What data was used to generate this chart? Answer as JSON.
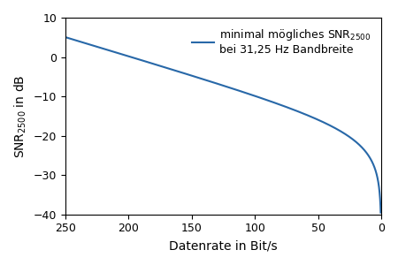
{
  "title_line1": "minimal mögliches SNR",
  "title_line2": "bei 31,25 Hz Bandbreite",
  "snr_subscript": "2500",
  "xlabel": "Datenrate in Bit/s",
  "ylabel_text": "SNR$_{2500}$ in dB",
  "bandwidth": 31.25,
  "snr_ref": 2500,
  "xlim": [
    250,
    0
  ],
  "ylim": [
    -40,
    10
  ],
  "xticks": [
    250,
    200,
    150,
    100,
    50,
    0
  ],
  "yticks": [
    -40,
    -30,
    -20,
    -10,
    0,
    10
  ],
  "line_color": "#2868a8",
  "legend_label": "minimal mögliches SNR$_{2500}$\nbei 31,25 Hz Bandbreite",
  "figsize": [
    4.5,
    3.0
  ],
  "dpi": 100
}
